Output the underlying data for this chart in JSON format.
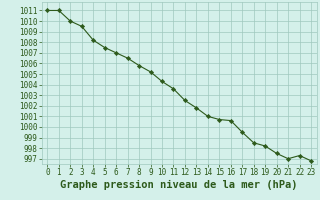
{
  "x": [
    0,
    1,
    2,
    3,
    4,
    5,
    6,
    7,
    8,
    9,
    10,
    11,
    12,
    13,
    14,
    15,
    16,
    17,
    18,
    19,
    20,
    21,
    22,
    23
  ],
  "y": [
    1011,
    1011,
    1010,
    1009.5,
    1008.2,
    1007.5,
    1007,
    1006.5,
    1005.8,
    1005.2,
    1004.3,
    1003.6,
    1002.5,
    1001.8,
    1001.0,
    1000.7,
    1000.6,
    999.5,
    998.5,
    998.2,
    997.5,
    997.0,
    997.3,
    996.8
  ],
  "line_color": "#2d5a1b",
  "marker_color": "#2d5a1b",
  "bg_color": "#d4f0ea",
  "grid_color": "#a0c8be",
  "xlabel": "Graphe pression niveau de la mer (hPa)",
  "ylim_min": 996.5,
  "ylim_max": 1011.8,
  "xlim_min": -0.5,
  "xlim_max": 23.5,
  "ytick_min": 997,
  "ytick_max": 1011,
  "tick_fontsize": 5.5,
  "xlabel_fontsize": 7.5
}
